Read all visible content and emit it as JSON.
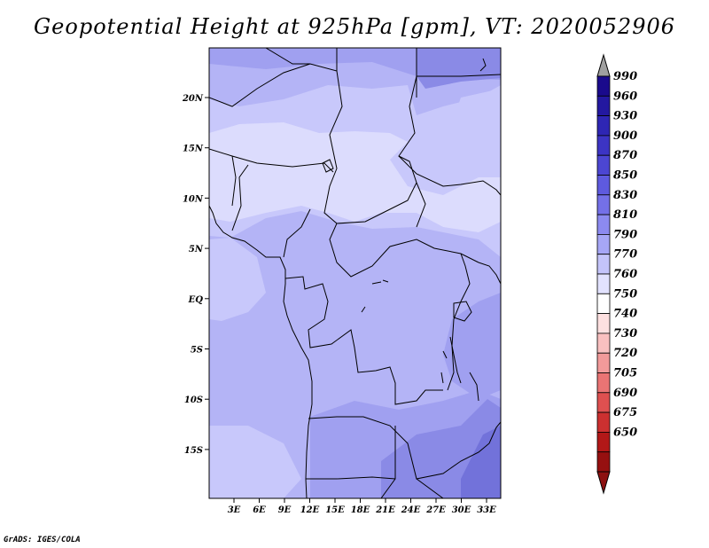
{
  "title": "Geopotential Height at 925hPa [gpm], VT: 2020052906",
  "credit": "GrADS: IGES/COLA",
  "map": {
    "lon_ticks": [
      "3E",
      "6E",
      "9E",
      "12E",
      "15E",
      "18E",
      "21E",
      "24E",
      "27E",
      "30E",
      "33E"
    ],
    "lat_ticks": [
      "20N",
      "15N",
      "10N",
      "5N",
      "EQ",
      "5S",
      "10S",
      "15S"
    ],
    "region_colors": {
      "very_light": "#dcdcfd",
      "light": "#c8c8fb",
      "medium": "#b4b4f6",
      "medium_dark": "#a0a0f0",
      "dark": "#8a8ae6",
      "darker": "#7272da"
    }
  },
  "colorbar": {
    "labels": [
      "990",
      "960",
      "930",
      "900",
      "870",
      "850",
      "830",
      "810",
      "790",
      "770",
      "760",
      "750",
      "740",
      "730",
      "720",
      "705",
      "690",
      "675",
      "650"
    ],
    "colors": [
      "#1a0a8c",
      "#2318a0",
      "#2e26b4",
      "#3c34c4",
      "#4c46d2",
      "#5e5ade",
      "#7470e8",
      "#8c8af0",
      "#a6a6f6",
      "#c4c4fa",
      "#e2e2fe",
      "#ffffff",
      "#fde0e0",
      "#f9c0c0",
      "#f29a9a",
      "#ea7474",
      "#de5050",
      "#cc3030",
      "#b21818",
      "#961010"
    ],
    "top_arrow_color": "#a0a0a0",
    "bottom_arrow_color": "#8c1010"
  }
}
